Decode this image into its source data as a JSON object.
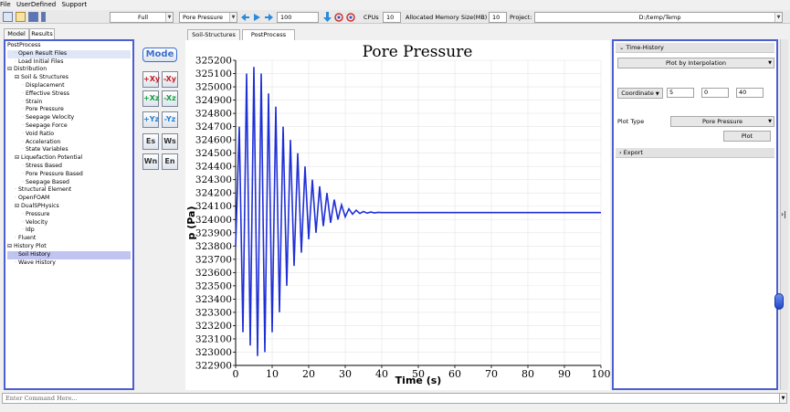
{
  "menu": {
    "file": "File",
    "user_defined": "UserDefined",
    "support": "Support"
  },
  "toolbar": {
    "view_mode": "Full",
    "result_type": "Pore Pressure",
    "step_value": "100",
    "cpus_label": "CPUs",
    "cpus_value": "10",
    "memory_label": "Allocated Memory Size(MB) :",
    "memory_value": "10",
    "project_label": "Project:",
    "project_value": "D:/temp/Temp"
  },
  "left_tabs": [
    "Model",
    "Results"
  ],
  "center_tabs": [
    "Soil-Structures",
    "PostProcess"
  ],
  "tree": [
    {
      "label": "PostProcess",
      "indent": 0
    },
    {
      "label": "Open Result Files",
      "indent": 1,
      "state": "hl"
    },
    {
      "label": "Load Initial Files",
      "indent": 1
    },
    {
      "label": "Distribution",
      "indent": 0,
      "exp": "⊟"
    },
    {
      "label": "Soil & Structures",
      "indent": 1,
      "exp": "⊟"
    },
    {
      "label": "Displacement",
      "indent": 2
    },
    {
      "label": "Effective Stress",
      "indent": 2
    },
    {
      "label": "Strain",
      "indent": 2
    },
    {
      "label": "Pore Pressure",
      "indent": 2
    },
    {
      "label": "Seepage Velocity",
      "indent": 2
    },
    {
      "label": "Seepage Force",
      "indent": 2
    },
    {
      "label": "Void Ratio",
      "indent": 2
    },
    {
      "label": "Acceleration",
      "indent": 2
    },
    {
      "label": "State Variables",
      "indent": 2
    },
    {
      "label": "Liquefaction Potential",
      "indent": 1,
      "exp": "⊟"
    },
    {
      "label": "Stress Based",
      "indent": 2
    },
    {
      "label": "Pore Pressure Based",
      "indent": 2
    },
    {
      "label": "Seepage Based",
      "indent": 2
    },
    {
      "label": "Structural Element",
      "indent": 1
    },
    {
      "label": "OpenFOAM",
      "indent": 1
    },
    {
      "label": "DualSPHysics",
      "indent": 1,
      "exp": "⊟"
    },
    {
      "label": "Pressure",
      "indent": 2
    },
    {
      "label": "Velocity",
      "indent": 2
    },
    {
      "label": "Idp",
      "indent": 2
    },
    {
      "label": "Fluent",
      "indent": 1
    },
    {
      "label": "History Plot",
      "indent": 0,
      "exp": "⊟"
    },
    {
      "label": "Soil History",
      "indent": 1,
      "state": "sel"
    },
    {
      "label": "Wave History",
      "indent": 1
    }
  ],
  "mode_buttons": {
    "mode": "Mode",
    "plus_xy": "+Xy",
    "minus_xy": "-Xy",
    "plus_xz": "+Xz",
    "minus_xz": "-Xz",
    "plus_yz": "+Yz",
    "minus_yz": "-Yz",
    "es": "Es",
    "ws": "Ws",
    "wn": "Wn",
    "en": "En"
  },
  "right_panel": {
    "time_history": "Time-History",
    "plot_method": "Plot by Interpolation",
    "coordinate": "Coordinate",
    "coord_x": "5",
    "coord_y": "0",
    "coord_z": "40",
    "plot_type_label": "Plot Type",
    "plot_type_value": "Pore Pressure",
    "plot_button": "Plot",
    "export": "Export"
  },
  "command": {
    "placeholder": "Enter Command Here..."
  },
  "colors": {
    "panel_border": "#4c5fd0",
    "series": "#1f2fd6",
    "selection": "#c0c4f0"
  },
  "chart_data": {
    "type": "line",
    "title": "Pore Pressure",
    "xlabel": "Time (s)",
    "ylabel": "p (Pa)",
    "xlim": [
      0,
      100
    ],
    "ylim": [
      322900,
      325200
    ],
    "xticks": [
      0,
      10,
      20,
      30,
      40,
      50,
      60,
      70,
      80,
      90,
      100
    ],
    "yticks": [
      322900,
      323000,
      323100,
      323200,
      323300,
      323400,
      323500,
      323600,
      323700,
      323800,
      323900,
      324000,
      324100,
      324200,
      324300,
      324400,
      324500,
      324600,
      324700,
      324800,
      324900,
      325000,
      325100,
      325200
    ],
    "series": [
      {
        "x": [
          0,
          1,
          2,
          3,
          4,
          5,
          6,
          7,
          8,
          9,
          10,
          11,
          12,
          13,
          14,
          15,
          16,
          17,
          18,
          19,
          20,
          21,
          22,
          23,
          24,
          25,
          26,
          27,
          28,
          29,
          30,
          31,
          32,
          33,
          34,
          35,
          36,
          37,
          38,
          39,
          40,
          45,
          50,
          60,
          70,
          80,
          90,
          100
        ],
        "y": [
          323800,
          324700,
          323150,
          325100,
          323050,
          325150,
          322970,
          325100,
          323000,
          324950,
          323150,
          324850,
          323300,
          324700,
          323500,
          324600,
          323650,
          324500,
          323750,
          324400,
          323850,
          324300,
          323900,
          324250,
          323950,
          324200,
          323975,
          324150,
          324000,
          324110,
          324020,
          324080,
          324040,
          324070,
          324045,
          324060,
          324048,
          324056,
          324050,
          324054,
          324052,
          324052,
          324052,
          324052,
          324052,
          324052,
          324052,
          324052
        ]
      }
    ]
  }
}
